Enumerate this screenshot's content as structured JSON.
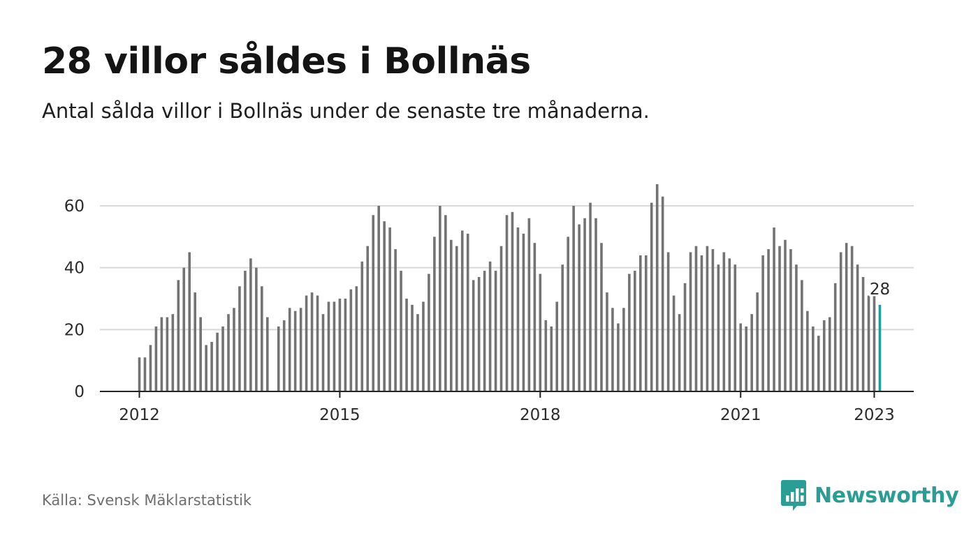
{
  "header": {
    "title": "28 villor såldes i Bollnäs",
    "subtitle": "Antal sålda villor i Bollnäs under de senaste tre månaderna."
  },
  "footer": {
    "source": "Källa: Svensk Mäklarstatistik",
    "brand": "Newsworthy"
  },
  "colors": {
    "bar": "#737373",
    "highlight": "#1f9e95",
    "grid": "#d9d9d9",
    "axis": "#222222",
    "brand": "#2a9d94"
  },
  "icons": {
    "brand_logo": "bar-chart-speech-bubble-icon"
  },
  "chart_data": {
    "type": "bar",
    "title": "28 villor såldes i Bollnäs",
    "subtitle": "Antal sålda villor i Bollnäs under de senaste tre månaderna.",
    "xlabel": "",
    "ylabel": "",
    "ylim": [
      0,
      70
    ],
    "yticks": [
      0,
      20,
      40,
      60
    ],
    "xticks": [
      "2012",
      "2015",
      "2018",
      "2021",
      "2023"
    ],
    "grid": true,
    "legend": "none",
    "highlight_label": "28",
    "start": "2012-01",
    "values": [
      11,
      11,
      15,
      21,
      24,
      24,
      25,
      36,
      40,
      45,
      32,
      24,
      15,
      16,
      19,
      21,
      25,
      27,
      34,
      39,
      43,
      40,
      34,
      24,
      null,
      21,
      23,
      27,
      26,
      27,
      31,
      32,
      31,
      25,
      29,
      29,
      30,
      30,
      33,
      34,
      42,
      47,
      57,
      60,
      55,
      53,
      46,
      39,
      30,
      28,
      25,
      29,
      38,
      50,
      60,
      57,
      49,
      47,
      52,
      51,
      36,
      37,
      39,
      42,
      39,
      47,
      57,
      58,
      53,
      51,
      56,
      48,
      38,
      23,
      21,
      29,
      41,
      50,
      60,
      54,
      56,
      61,
      56,
      48,
      32,
      27,
      22,
      27,
      38,
      39,
      44,
      44,
      61,
      67,
      63,
      45,
      31,
      25,
      35,
      45,
      47,
      44,
      47,
      46,
      41,
      45,
      43,
      41,
      22,
      21,
      25,
      32,
      44,
      46,
      53,
      47,
      49,
      46,
      41,
      36,
      26,
      21,
      18,
      23,
      24,
      35,
      45,
      48,
      47,
      41,
      37,
      31,
      31,
      28
    ]
  }
}
